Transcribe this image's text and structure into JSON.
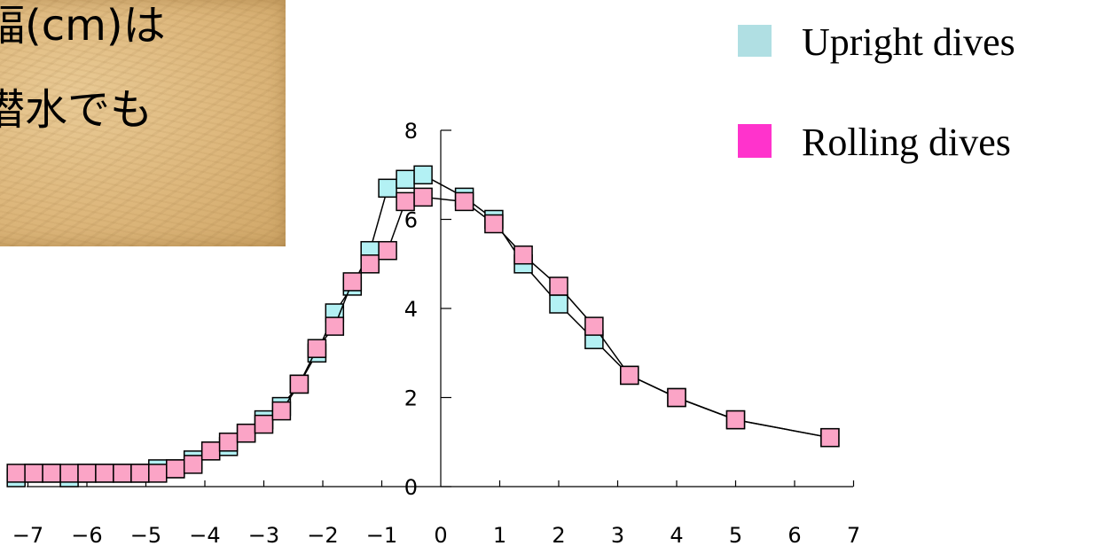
{
  "caption": {
    "line1": "幅(cm)は",
    "line2": "潜水でも"
  },
  "chart_data": {
    "type": "line",
    "title": "",
    "xlabel": "",
    "ylabel": "",
    "xlim": [
      -7,
      7
    ],
    "ylim": [
      0,
      8
    ],
    "x_ticks": [
      -7,
      -6,
      -5,
      -4,
      -3,
      -2,
      -1,
      0,
      1,
      2,
      3,
      4,
      5,
      6,
      7
    ],
    "y_ticks": [
      0,
      2,
      4,
      6,
      8
    ],
    "grid": false,
    "legend_position": "top-right",
    "series": [
      {
        "name": "Upright dives",
        "color": "#b3f1f4",
        "x": [
          -7.2,
          -6.9,
          -6.6,
          -6.3,
          -6.0,
          -5.7,
          -5.4,
          -5.1,
          -4.8,
          -4.5,
          -4.2,
          -3.9,
          -3.6,
          -3.3,
          -3.0,
          -2.7,
          -2.4,
          -2.1,
          -1.8,
          -1.5,
          -1.2,
          -0.9,
          -0.6,
          -0.3,
          0.4,
          0.9,
          1.4,
          2.0,
          2.6,
          3.2,
          4.0,
          5.0,
          6.6
        ],
        "y": [
          0.2,
          0.3,
          0.3,
          0.2,
          0.3,
          0.3,
          0.3,
          0.3,
          0.4,
          0.4,
          0.6,
          0.8,
          0.9,
          1.2,
          1.5,
          1.8,
          2.3,
          3.0,
          3.9,
          4.5,
          5.3,
          6.7,
          6.9,
          7.0,
          6.5,
          6.0,
          5.0,
          4.1,
          3.3,
          2.5,
          2.0,
          1.5,
          1.1
        ]
      },
      {
        "name": "Rolling dives",
        "color": "#fba4c6",
        "x": [
          -7.2,
          -6.9,
          -6.6,
          -6.3,
          -6.0,
          -5.7,
          -5.4,
          -5.1,
          -4.8,
          -4.5,
          -4.2,
          -3.9,
          -3.6,
          -3.3,
          -3.0,
          -2.7,
          -2.4,
          -2.1,
          -1.8,
          -1.5,
          -1.2,
          -0.9,
          -0.6,
          -0.3,
          0.4,
          0.9,
          1.4,
          2.0,
          2.6,
          3.2,
          4.0,
          5.0,
          6.6
        ],
        "y": [
          0.3,
          0.3,
          0.3,
          0.3,
          0.3,
          0.3,
          0.3,
          0.3,
          0.3,
          0.4,
          0.5,
          0.8,
          1.0,
          1.2,
          1.4,
          1.7,
          2.3,
          3.1,
          3.6,
          4.6,
          5.0,
          5.3,
          6.4,
          6.5,
          6.4,
          5.9,
          5.2,
          4.5,
          3.6,
          2.5,
          2.0,
          1.5,
          1.1
        ]
      }
    ]
  },
  "legend": {
    "upright_label": "Upright dives",
    "rolling_label": "Rolling dives",
    "upright_color": "#b0dfe3",
    "rolling_color": "#ff33cc"
  }
}
